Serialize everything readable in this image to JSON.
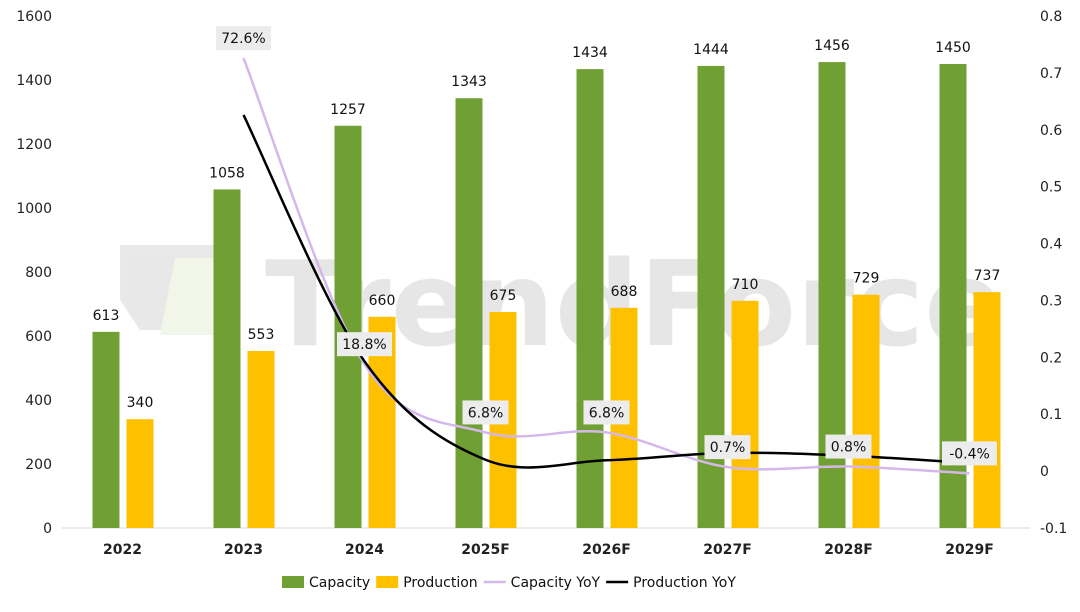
{
  "chart_data": {
    "type": "bar",
    "categories": [
      "2022",
      "2023",
      "2024",
      "2025F",
      "2026F",
      "2027F",
      "2028F",
      "2029F"
    ],
    "series": [
      {
        "name": "Capacity",
        "type": "bar",
        "axis": "left",
        "color": "#70A033",
        "values": [
          613,
          1058,
          1257,
          1343,
          1434,
          1444,
          1456,
          1450
        ]
      },
      {
        "name": "Production",
        "type": "bar",
        "axis": "left",
        "color": "#FFC000",
        "values": [
          340,
          553,
          660,
          675,
          688,
          710,
          729,
          737
        ]
      },
      {
        "name": "Capacity YoY",
        "type": "line",
        "axis": "right",
        "color": "#D5B8EA",
        "values": [
          null,
          0.726,
          0.188,
          0.068,
          0.068,
          0.007,
          0.008,
          -0.004
        ],
        "labels": [
          null,
          "72.6%",
          "18.8%",
          "6.8%",
          "6.8%",
          "0.7%",
          "0.8%",
          "-0.4%"
        ]
      },
      {
        "name": "Production YoY",
        "type": "line",
        "axis": "right",
        "color": "#000000",
        "values": [
          null,
          0.626,
          0.193,
          0.02,
          0.019,
          0.032,
          0.027,
          0.014
        ]
      }
    ],
    "left_axis": {
      "ylim": [
        0,
        1600
      ],
      "ticks": [
        "0",
        "200",
        "400",
        "600",
        "800",
        "1000",
        "1200",
        "1400",
        "1600"
      ]
    },
    "right_axis": {
      "ylim": [
        -0.1,
        0.8
      ],
      "ticks": [
        "-0.1",
        "0",
        "0.1",
        "0.2",
        "0.3",
        "0.4",
        "0.5",
        "0.6",
        "0.7",
        "0.8"
      ]
    },
    "grid": false,
    "legend_position": "bottom",
    "watermark": "TrendForce"
  }
}
